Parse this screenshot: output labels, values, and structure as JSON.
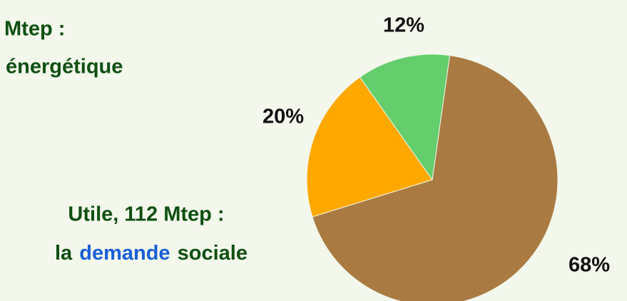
{
  "chart_data": {
    "type": "pie",
    "values": [
      68,
      20,
      12
    ],
    "value_labels": [
      "68%",
      "20%",
      "12%"
    ],
    "colors": [
      "#a97b42",
      "#fea800",
      "#64cd6c"
    ],
    "annotations": [
      "Mtep :",
      "énergétique",
      "Utile, 112 Mtep :"
    ],
    "caption": [
      "la",
      "demande",
      "sociale"
    ]
  }
}
